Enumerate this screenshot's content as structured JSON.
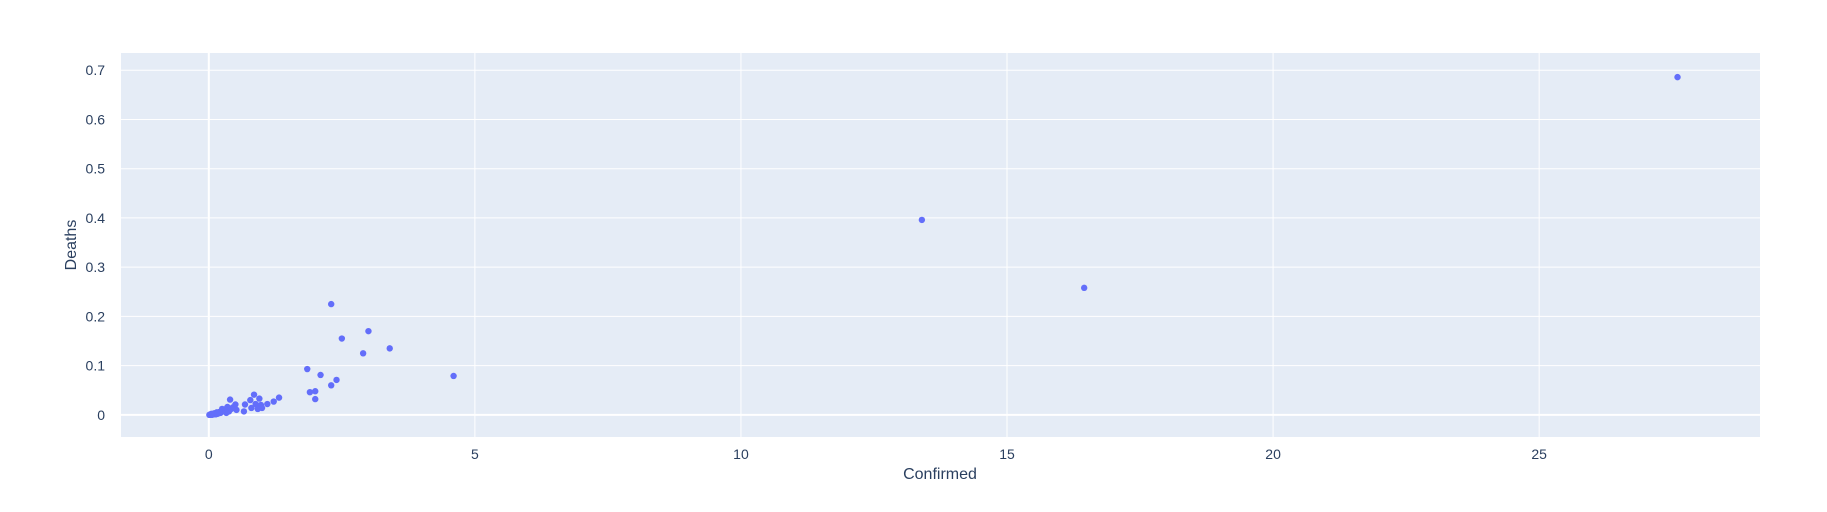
{
  "chart_data": {
    "type": "scatter",
    "title": "",
    "xlabel": "Confirmed",
    "ylabel": "Deaths",
    "xlim": [
      -1.65,
      29.15
    ],
    "ylim": [
      -0.045,
      0.735
    ],
    "x_ticks": [
      0,
      5,
      10,
      15,
      20,
      25
    ],
    "y_ticks": [
      0,
      0.1,
      0.2,
      0.3,
      0.4,
      0.5,
      0.6,
      0.7
    ],
    "x_tick_labels": [
      "0",
      "5",
      "10",
      "15",
      "20",
      "25"
    ],
    "y_tick_labels": [
      "0",
      "0.1",
      "0.2",
      "0.3",
      "0.4",
      "0.5",
      "0.6",
      "0.7"
    ],
    "grid": true,
    "legend": "none",
    "colors": {
      "marker": "#636efa",
      "plot_bg": "#e5ecf6",
      "grid": "#ffffff",
      "text": "#2a3f5f"
    },
    "series": [
      {
        "points": [
          [
            27.6,
            0.686
          ],
          [
            16.45,
            0.258
          ],
          [
            13.4,
            0.396
          ],
          [
            4.6,
            0.079
          ],
          [
            3.4,
            0.135
          ],
          [
            3.0,
            0.17
          ],
          [
            2.9,
            0.125
          ],
          [
            2.5,
            0.155
          ],
          [
            2.3,
            0.225
          ],
          [
            2.4,
            0.071
          ],
          [
            2.3,
            0.06
          ],
          [
            2.1,
            0.081
          ],
          [
            1.85,
            0.093
          ],
          [
            1.9,
            0.046
          ],
          [
            2.0,
            0.048
          ],
          [
            2.0,
            0.032
          ],
          [
            1.32,
            0.035
          ],
          [
            1.22,
            0.027
          ],
          [
            1.1,
            0.022
          ],
          [
            0.85,
            0.041
          ],
          [
            0.95,
            0.033
          ],
          [
            0.78,
            0.03
          ],
          [
            0.88,
            0.022
          ],
          [
            0.98,
            0.02
          ],
          [
            0.92,
            0.012
          ],
          [
            1.0,
            0.014
          ],
          [
            0.8,
            0.014
          ],
          [
            0.68,
            0.021
          ],
          [
            0.66,
            0.007
          ],
          [
            0.5,
            0.021
          ],
          [
            0.45,
            0.015
          ],
          [
            0.52,
            0.01
          ],
          [
            0.4,
            0.031
          ],
          [
            0.42,
            0.012
          ],
          [
            0.35,
            0.016
          ],
          [
            0.38,
            0.007
          ],
          [
            0.3,
            0.011
          ],
          [
            0.28,
            0.007
          ],
          [
            0.25,
            0.012
          ],
          [
            0.22,
            0.004
          ],
          [
            0.2,
            0.006
          ],
          [
            0.18,
            0.003
          ],
          [
            0.15,
            0.005
          ],
          [
            0.12,
            0.002
          ],
          [
            0.1,
            0.003
          ],
          [
            0.08,
            0.001
          ],
          [
            0.05,
            0.002
          ],
          [
            0.03,
            0.001
          ],
          [
            0.01,
            0.0
          ],
          [
            0.02,
            0.0
          ],
          [
            0.04,
            0.001
          ],
          [
            0.06,
            0.0
          ],
          [
            0.09,
            0.001
          ],
          [
            0.13,
            0.001
          ],
          [
            0.16,
            0.002
          ],
          [
            0.33,
            0.004
          ]
        ]
      }
    ]
  }
}
